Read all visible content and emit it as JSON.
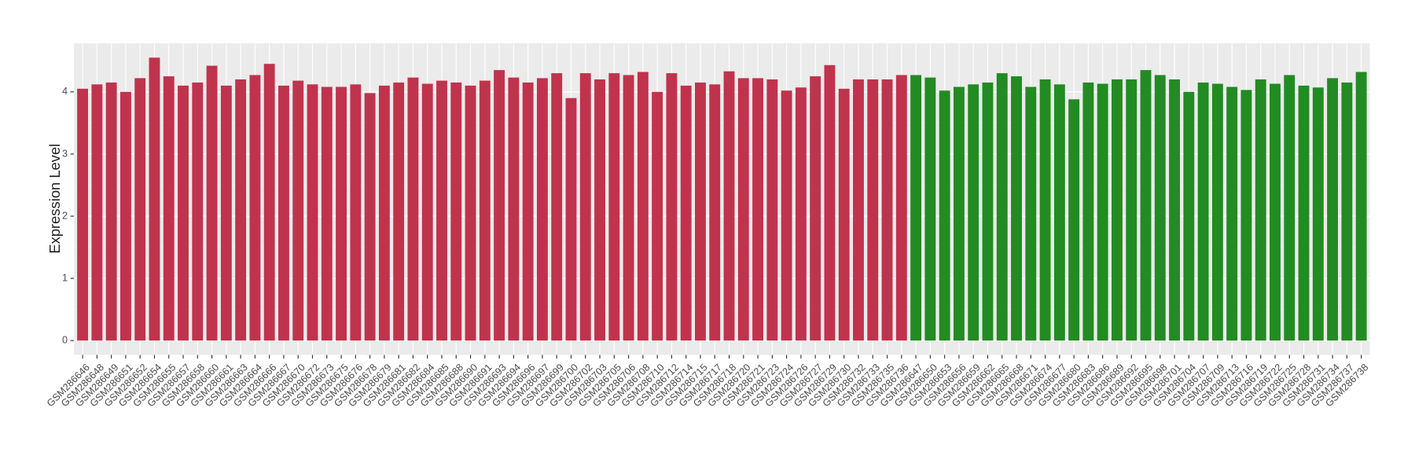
{
  "chart_data": {
    "type": "bar",
    "y_label": "Expression Level",
    "ylim": [
      -0.23,
      4.78
    ],
    "yticks": [
      0,
      1,
      2,
      3,
      4
    ],
    "grid": true,
    "series": [
      {
        "color": "#c0334d",
        "categories": [
          "GSM286646",
          "GSM286648",
          "GSM286649",
          "GSM286651",
          "GSM286652",
          "GSM286654",
          "GSM286655",
          "GSM286657",
          "GSM286658",
          "GSM286660",
          "GSM286661",
          "GSM286663",
          "GSM286664",
          "GSM286666",
          "GSM286667",
          "GSM286670",
          "GSM286672",
          "GSM286673",
          "GSM286675",
          "GSM286676",
          "GSM286678",
          "GSM286679",
          "GSM286681",
          "GSM286682",
          "GSM286684",
          "GSM286685",
          "GSM286688",
          "GSM286690",
          "GSM286691",
          "GSM286693",
          "GSM286694",
          "GSM286696",
          "GSM286697",
          "GSM286699",
          "GSM286700",
          "GSM286702",
          "GSM286703",
          "GSM286705",
          "GSM286706",
          "GSM286708",
          "GSM286710",
          "GSM286712",
          "GSM286714",
          "GSM286715",
          "GSM286717",
          "GSM286718",
          "GSM286720",
          "GSM286721",
          "GSM286723",
          "GSM286724",
          "GSM286726",
          "GSM286727",
          "GSM286729",
          "GSM286730",
          "GSM286732",
          "GSM286733",
          "GSM286735",
          "GSM286736"
        ],
        "values": [
          4.05,
          4.12,
          4.15,
          4.0,
          4.22,
          4.55,
          4.25,
          4.1,
          4.15,
          4.42,
          4.1,
          4.2,
          4.27,
          4.45,
          4.1,
          4.18,
          4.12,
          4.08,
          4.08,
          4.12,
          3.98,
          4.1,
          4.15,
          4.23,
          4.13,
          4.18,
          4.15,
          4.1,
          4.18,
          4.35,
          4.23,
          4.15,
          4.22,
          4.3,
          3.9,
          4.3,
          4.2,
          4.3,
          4.27,
          4.32,
          4.0,
          4.3,
          4.1,
          4.15,
          4.12,
          4.33,
          4.22,
          4.22,
          4.2,
          4.02,
          4.07,
          4.25,
          4.43,
          4.05,
          4.2,
          4.2,
          4.2,
          4.27
        ]
      },
      {
        "color": "#228b22",
        "categories": [
          "GSM286647",
          "GSM286650",
          "GSM286653",
          "GSM286656",
          "GSM286659",
          "GSM286662",
          "GSM286665",
          "GSM286668",
          "GSM286671",
          "GSM286674",
          "GSM286677",
          "GSM286680",
          "GSM286683",
          "GSM286686",
          "GSM286689",
          "GSM286692",
          "GSM286695",
          "GSM286698",
          "GSM286701",
          "GSM286704",
          "GSM286707",
          "GSM286709",
          "GSM286713",
          "GSM286716",
          "GSM286719",
          "GSM286722",
          "GSM286725",
          "GSM286728",
          "GSM286731",
          "GSM286734",
          "GSM286737",
          "GSM286738"
        ],
        "values": [
          4.27,
          4.23,
          4.02,
          4.08,
          4.12,
          4.15,
          4.3,
          4.25,
          4.08,
          4.2,
          4.12,
          3.88,
          4.15,
          4.13,
          4.2,
          4.2,
          4.35,
          4.27,
          4.2,
          4.0,
          4.15,
          4.13,
          4.08,
          4.03,
          4.2,
          4.13,
          4.27,
          4.1,
          4.07,
          4.22,
          4.15,
          4.32
        ]
      }
    ]
  }
}
